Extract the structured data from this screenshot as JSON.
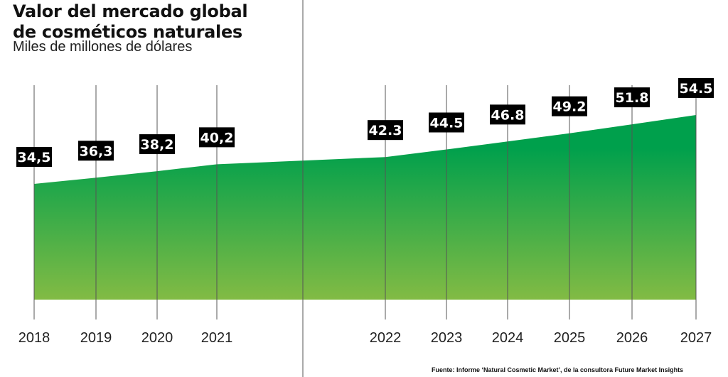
{
  "header": {
    "title_line1": "Valor del mercado global",
    "title_line2": "de cosméticos naturales",
    "subtitle": "Miles de millones de dólares"
  },
  "source": "Fuente: Informe ‘Natural Cosmetic Market’, de la consultora Future Market Insights",
  "colors": {
    "area_top": "#00a04c",
    "area_bottom": "#82bb44",
    "label_bg": "#000000",
    "label_text": "#ffffff",
    "gridline": "#555555"
  },
  "chart_data": {
    "type": "area",
    "x": [
      "2018",
      "2019",
      "2020",
      "2021",
      "2022",
      "2023",
      "2024",
      "2025",
      "2026",
      "2027"
    ],
    "values": [
      34.5,
      36.3,
      38.2,
      40.2,
      42.3,
      44.5,
      46.8,
      49.2,
      51.8,
      54.5
    ],
    "value_labels": [
      "34,5",
      "36,3",
      "38,2",
      "40,2",
      "42.3",
      "44.5",
      "46.8",
      "49.2",
      "51.8",
      "54.5"
    ],
    "title": "Valor del mercado global de cosméticos naturales",
    "ylabel": "Miles de millones de dólares",
    "grid": "vertical"
  }
}
